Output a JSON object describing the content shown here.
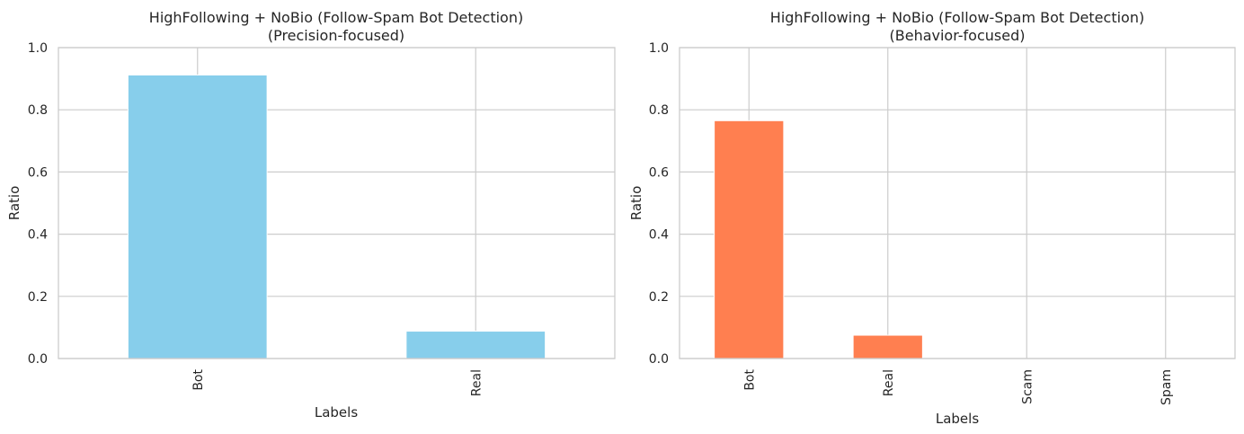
{
  "chart_data": [
    {
      "type": "bar",
      "title": "HighFollowing + NoBio (Follow-Spam Bot Detection)",
      "subtitle": "(Precision-focused)",
      "xlabel": "Labels",
      "ylabel": "Ratio",
      "categories": [
        "Bot",
        "Real"
      ],
      "values": [
        0.912,
        0.088
      ],
      "color": "#87CEEB",
      "ylim": [
        0,
        1
      ],
      "yticks": [
        "0.0",
        "0.2",
        "0.4",
        "0.6",
        "0.8",
        "1.0"
      ],
      "grid": true
    },
    {
      "type": "bar",
      "title": "HighFollowing + NoBio (Follow-Spam Bot Detection)",
      "subtitle": "(Behavior-focused)",
      "xlabel": "Labels",
      "ylabel": "Ratio",
      "categories": [
        "Bot",
        "Real",
        "Scam",
        "Spam"
      ],
      "values": [
        0.765,
        0.075,
        0.0,
        0.0
      ],
      "color": "#FF7F50",
      "ylim": [
        0,
        1
      ],
      "yticks": [
        "0.0",
        "0.2",
        "0.4",
        "0.6",
        "0.8",
        "1.0"
      ],
      "grid": true
    }
  ]
}
